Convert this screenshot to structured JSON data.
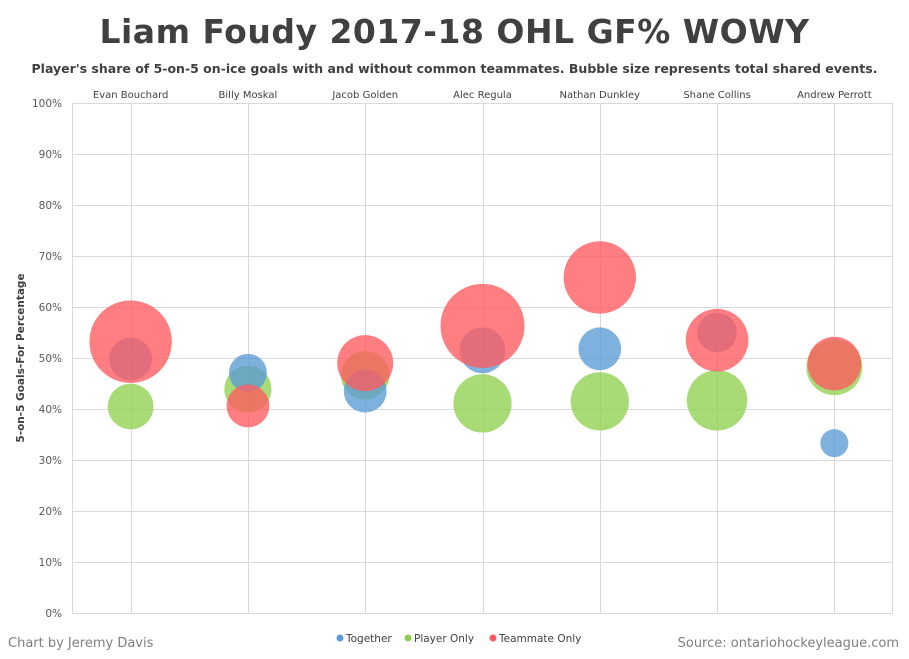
{
  "header": {
    "title": "Liam Foudy 2017-18 OHL GF% WOWY",
    "subtitle": "Player's share of 5-on-5 on-ice goals with and without common teammates. Bubble size represents total shared events."
  },
  "footer": {
    "credit": "Chart by Jeremy Davis",
    "source": "Source: ontariohockeyleague.com"
  },
  "colors": {
    "together": "#5b9bd5",
    "player_only": "#8fd14f",
    "teammate_only": "#ff5a5f",
    "grid": "#d9d9d9"
  },
  "chart_data": {
    "type": "scatter",
    "title": "Liam Foudy 2017-18 OHL GF% WOWY",
    "xlabel": "",
    "ylabel": "5-on-5 Goals-For Percentage",
    "categories": [
      "Evan Bouchard",
      "Billy Moskal",
      "Jacob Golden",
      "Alec Regula",
      "Nathan Dunkley",
      "Shane Collins",
      "Andrew Perrott"
    ],
    "ylim": [
      0,
      100
    ],
    "yticks": [
      "0%",
      "10%",
      "20%",
      "30%",
      "40%",
      "50%",
      "60%",
      "70%",
      "80%",
      "90%",
      "100%"
    ],
    "grid": true,
    "legend_position": "bottom",
    "series": [
      {
        "name": "Together",
        "values": [
          49.8,
          47.1,
          43.5,
          51.5,
          51.8,
          55.0,
          33.3
        ],
        "sizes": [
          14,
          11,
          14,
          16,
          14,
          12,
          6
        ]
      },
      {
        "name": "Player Only",
        "values": [
          40.5,
          43.9,
          46.6,
          41.1,
          41.5,
          41.7,
          48.2
        ],
        "sizes": [
          16,
          17,
          18,
          26,
          26,
          28,
          24
        ]
      },
      {
        "name": "Teammate Only",
        "values": [
          53.2,
          40.6,
          49.0,
          56.3,
          65.8,
          53.5,
          48.9
        ],
        "sizes": [
          52,
          14,
          24,
          54,
          40,
          30,
          22
        ]
      }
    ]
  }
}
